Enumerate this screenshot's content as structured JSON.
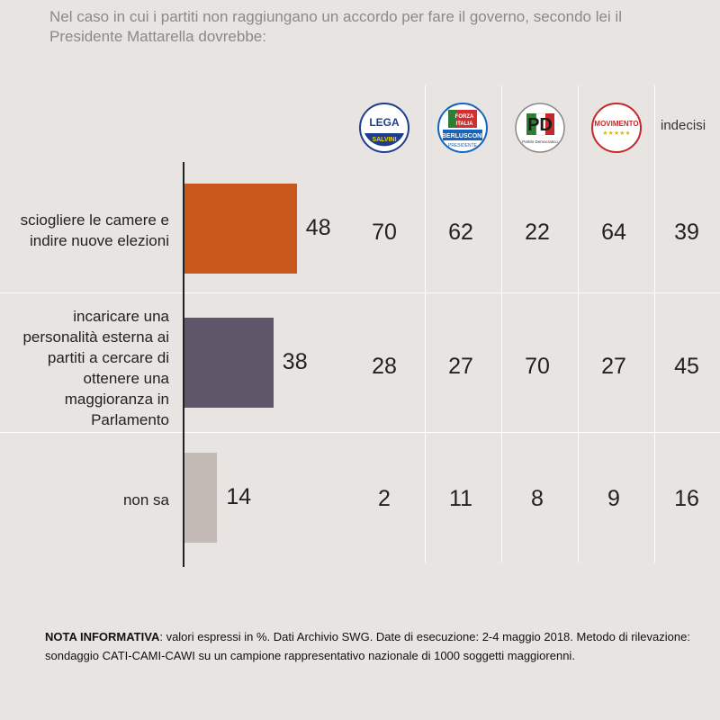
{
  "title_lines": [
    "Nel caso in cui i partiti non raggiungano un accordo per fare il governo, secondo lei il",
    "Presidente Mattarella dovrebbe:"
  ],
  "columns": [
    {
      "label": "LEGA SALVINI",
      "icon": "lega-logo-icon"
    },
    {
      "label": "FORZA ITALIA BERLUSCONI",
      "icon": "forza-italia-logo-icon"
    },
    {
      "label": "PD",
      "icon": "pd-logo-icon"
    },
    {
      "label": "MOVIMENTO 5 STELLE",
      "icon": "m5s-logo-icon"
    },
    {
      "label": "indecisi",
      "icon": null
    }
  ],
  "logo_text": {
    "lega": "LEGA",
    "salvini": "SALVINI",
    "forza": "FORZA",
    "italia": "ITALIA",
    "berlusconi": "BERLUSCONI",
    "presidente": "PRESIDENTE",
    "pd": "PD",
    "pd_sub": "Partito Democratico",
    "m5s": "MOVIMENTO",
    "m5s_stars": "★★★★★"
  },
  "chart_data": {
    "type": "bar",
    "orientation": "horizontal",
    "categories": [
      "sciogliere le camere e indire nuove elezioni",
      "incaricare una personalità esterna ai partiti a cercare di ottenere una maggioranza in Parlamento",
      "non sa"
    ],
    "category_lines": [
      [
        "sciogliere le camere e",
        "indire nuove elezioni"
      ],
      [
        "incaricare una",
        "personalità esterna ai",
        "partiti a cercare di",
        "ottenere una",
        "maggioranza in",
        "Parlamento"
      ],
      [
        "non sa"
      ]
    ],
    "values": [
      48,
      38,
      14
    ],
    "colors": [
      "#c9571a",
      "#5f566a",
      "#c4bab5"
    ],
    "table": {
      "columns": [
        "LEGA",
        "FORZA ITALIA",
        "PD",
        "MOVIMENTO 5 STELLE",
        "indecisi"
      ],
      "rows": [
        [
          70,
          62,
          22,
          64,
          39
        ],
        [
          28,
          27,
          70,
          27,
          45
        ],
        [
          2,
          11,
          8,
          9,
          16
        ]
      ]
    },
    "unit": "%"
  },
  "note": {
    "bold": "NOTA INFORMATIVA",
    "text": ": valori espressi in %. Dati Archivio SWG. Date di esecuzione: 2-4 maggio 2018. Metodo di rilevazione: sondaggio CATI-CAMI-CAWI su un campione rappresentativo nazionale di 1000 soggetti maggiorenni."
  }
}
